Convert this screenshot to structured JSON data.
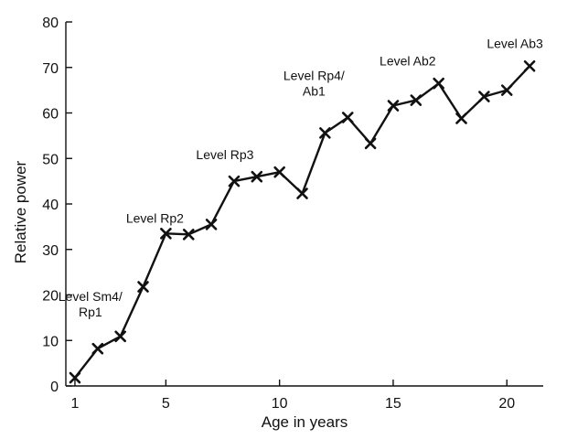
{
  "chart_data": {
    "type": "line",
    "xlabel": "Age in years",
    "ylabel": "Relative power",
    "xlim": [
      0.6,
      21.6
    ],
    "ylim": [
      0,
      80
    ],
    "x_ticks": [
      1,
      5,
      10,
      15,
      20
    ],
    "y_ticks": [
      0,
      10,
      20,
      30,
      40,
      50,
      60,
      70,
      80
    ],
    "grid": false,
    "marker": "x",
    "line_color": "#111111",
    "series": [
      {
        "x": [
          1,
          2,
          3,
          4,
          5,
          6,
          7,
          8,
          9,
          10,
          11,
          12,
          13,
          14,
          15,
          16,
          17,
          18,
          19,
          20,
          21
        ],
        "y": [
          1.8,
          8.2,
          10.9,
          21.8,
          33.5,
          33.3,
          35.5,
          45.0,
          46.0,
          47.0,
          42.3,
          55.6,
          59.0,
          53.3,
          61.6,
          62.8,
          66.5,
          58.8,
          63.6,
          65.0,
          70.3
        ]
      }
    ],
    "annotations": [
      {
        "lines": [
          "Level Sm4/",
          "Rp1"
        ],
        "x": 2,
        "y": 8.2
      },
      {
        "lines": [
          "Level Rp2"
        ],
        "x": 5,
        "y": 33.5
      },
      {
        "lines": [
          "Level Rp3"
        ],
        "x": 8,
        "y": 45.0
      },
      {
        "lines": [
          "Level Rp4/",
          "Ab1"
        ],
        "x": 12,
        "y": 55.6
      },
      {
        "lines": [
          "Level Ab2"
        ],
        "x": 16,
        "y": 62.8
      },
      {
        "lines": [
          "Level Ab3"
        ],
        "x": 21,
        "y": 70.3
      }
    ]
  }
}
